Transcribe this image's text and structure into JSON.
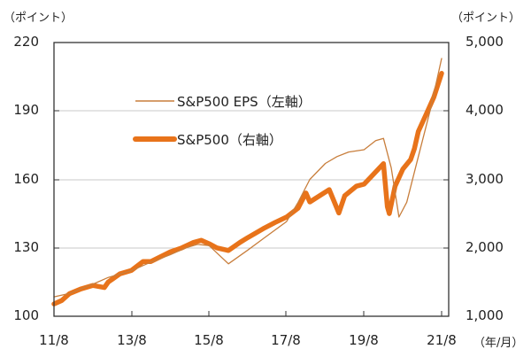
{
  "chart_data": {
    "type": "line",
    "title": "",
    "left_axis": {
      "unit_label": "(ポイント)",
      "ylim": [
        100,
        220
      ],
      "ticks": [
        "220",
        "190",
        "160",
        "130",
        "100"
      ],
      "tick_values": [
        220,
        190,
        160,
        130,
        100
      ]
    },
    "right_axis": {
      "unit_label": "(ポイント)",
      "ylim": [
        1000,
        5000
      ],
      "ticks": [
        "5,000",
        "4,000",
        "3,000",
        "2,000",
        "1,000"
      ],
      "tick_values": [
        5000,
        4000,
        3000,
        2000,
        1000
      ]
    },
    "x_axis": {
      "unit_label": "(年/月)",
      "ticks": [
        "11/8",
        "13/8",
        "15/8",
        "17/8",
        "19/8",
        "21/8"
      ],
      "range": [
        "2011-08",
        "2021-08"
      ]
    },
    "grid": true,
    "legend_position": "upper-left-inside",
    "series": [
      {
        "name": "S&P500 EPS（左軸）",
        "axis": "left",
        "color": "#C87E3C",
        "line_width": 1.3,
        "x": [
          2011.6,
          2012.0,
          2012.6,
          2013.0,
          2013.6,
          2014.0,
          2014.6,
          2015.0,
          2015.3,
          2015.6,
          2016.1,
          2016.6,
          2017.0,
          2017.6,
          2017.9,
          2018.2,
          2018.6,
          2018.9,
          2019.2,
          2019.6,
          2019.9,
          2020.1,
          2020.3,
          2020.5,
          2020.7,
          2021.0,
          2021.3,
          2021.6
        ],
        "values": [
          108.5,
          110,
          114,
          117,
          120,
          123,
          127,
          130,
          131.5,
          131,
          123,
          129,
          134,
          141.5,
          150,
          160,
          167,
          170,
          172,
          173,
          177,
          178,
          165,
          143.5,
          150,
          170,
          190,
          213
        ]
      },
      {
        "name": "S&P500（右軸）",
        "axis": "right",
        "color": "#E8731A",
        "line_width": 5.5,
        "x": [
          2011.6,
          2011.8,
          2012.0,
          2012.3,
          2012.6,
          2012.9,
          2013.0,
          2013.3,
          2013.6,
          2013.9,
          2014.1,
          2014.6,
          2014.9,
          2015.2,
          2015.4,
          2015.6,
          2015.8,
          2016.1,
          2016.4,
          2016.6,
          2017.0,
          2017.3,
          2017.6,
          2017.9,
          2018.1,
          2018.2,
          2018.7,
          2018.95,
          2019.1,
          2019.4,
          2019.6,
          2019.8,
          2020.1,
          2020.2,
          2020.25,
          2020.4,
          2020.6,
          2020.8,
          2020.9,
          2021.0,
          2021.2,
          2021.4,
          2021.6
        ],
        "values": [
          1180,
          1230,
          1330,
          1400,
          1450,
          1420,
          1500,
          1620,
          1670,
          1800,
          1800,
          1940,
          2000,
          2080,
          2110,
          2060,
          2000,
          1960,
          2080,
          2150,
          2280,
          2370,
          2450,
          2580,
          2800,
          2670,
          2850,
          2510,
          2760,
          2900,
          2930,
          3050,
          3230,
          2600,
          2500,
          2900,
          3150,
          3290,
          3450,
          3700,
          3950,
          4200,
          4550
        ]
      }
    ]
  },
  "legend": {
    "eps_label": "S&P500 EPS（左軸）",
    "sp500_label": "S&P500（右軸）"
  },
  "axes": {
    "left_unit": "（ポイント）",
    "right_unit": "（ポイント）",
    "x_unit": "（年/月）",
    "left_ticks": [
      "220",
      "190",
      "160",
      "130",
      "100"
    ],
    "right_ticks": [
      "5,000",
      "4,000",
      "3,000",
      "2,000",
      "1,000"
    ],
    "x_ticks": [
      "11/8",
      "13/8",
      "15/8",
      "17/8",
      "19/8",
      "21/8"
    ]
  }
}
